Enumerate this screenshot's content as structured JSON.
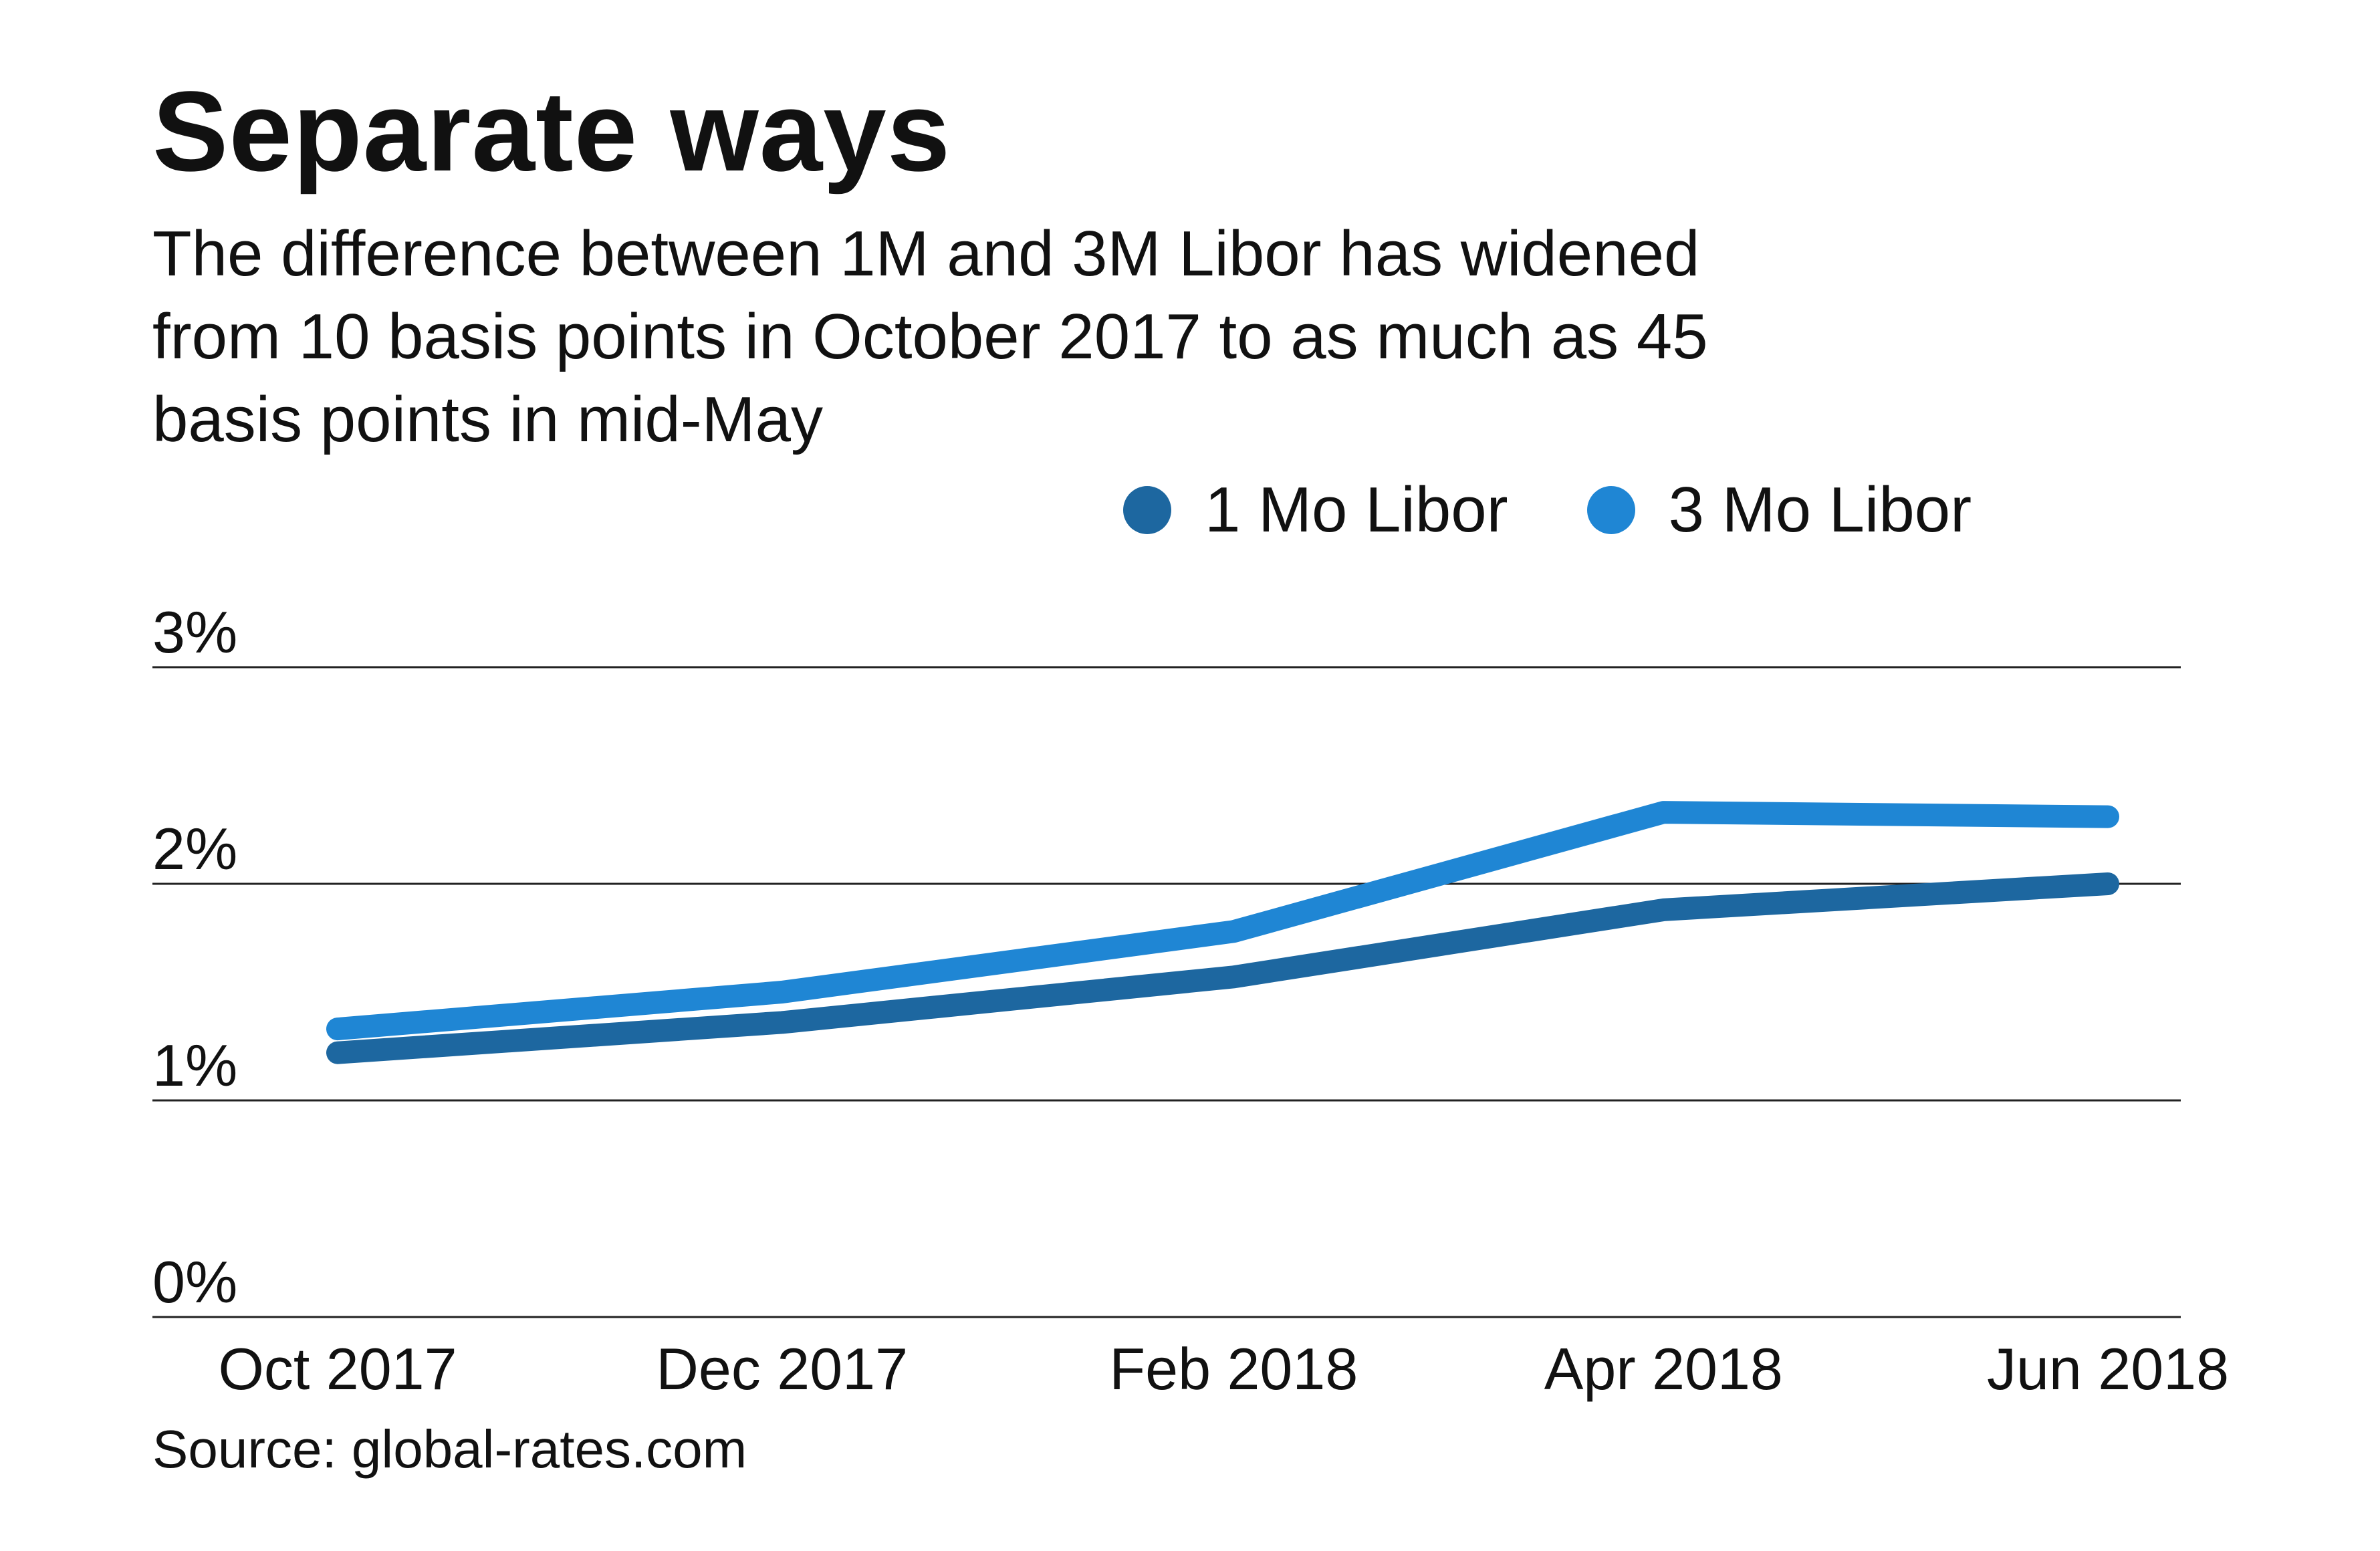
{
  "title": "Separate ways",
  "subtitle": [
    "The difference between 1M and 3M Libor has widened",
    "from 10 basis points in October 2017 to as much as 45",
    "basis points in mid-May"
  ],
  "legend": [
    {
      "label": "1 Mo Libor",
      "color": "#1d67a0"
    },
    {
      "label": "3 Mo Libor",
      "color": "#1f86d4"
    }
  ],
  "source": "Source: global-rates.com",
  "chart_data": {
    "type": "line",
    "title": "Separate ways",
    "x": [
      "2017-10-01",
      "2017-12-01",
      "2018-02-01",
      "2018-04-01",
      "2018-06-01"
    ],
    "x_tick_labels": [
      "Oct 2017",
      "Dec 2017",
      "Feb 2018",
      "Apr 2018",
      "Jun 2018"
    ],
    "y_tick_labels": [
      "3%",
      "2%",
      "1%",
      "0%"
    ],
    "y_ticks": [
      3,
      2,
      1,
      0
    ],
    "ylim": [
      0,
      3
    ],
    "grid": true,
    "legend_position": "top-right",
    "series": [
      {
        "name": "1 Mo Libor",
        "color": "#1d67a0",
        "points": [
          {
            "x": "2017-10-01",
            "y": 1.22
          },
          {
            "x": "2017-12-01",
            "y": 1.36
          },
          {
            "x": "2018-02-01",
            "y": 1.57
          },
          {
            "x": "2018-04-01",
            "y": 1.88
          },
          {
            "x": "2018-06-01",
            "y": 2.0
          }
        ]
      },
      {
        "name": "3 Mo Libor",
        "color": "#1f86d4",
        "points": [
          {
            "x": "2017-10-01",
            "y": 1.33
          },
          {
            "x": "2017-12-01",
            "y": 1.5
          },
          {
            "x": "2018-02-01",
            "y": 1.78
          },
          {
            "x": "2018-04-01",
            "y": 2.33
          },
          {
            "x": "2018-06-01",
            "y": 2.31
          }
        ]
      }
    ]
  }
}
